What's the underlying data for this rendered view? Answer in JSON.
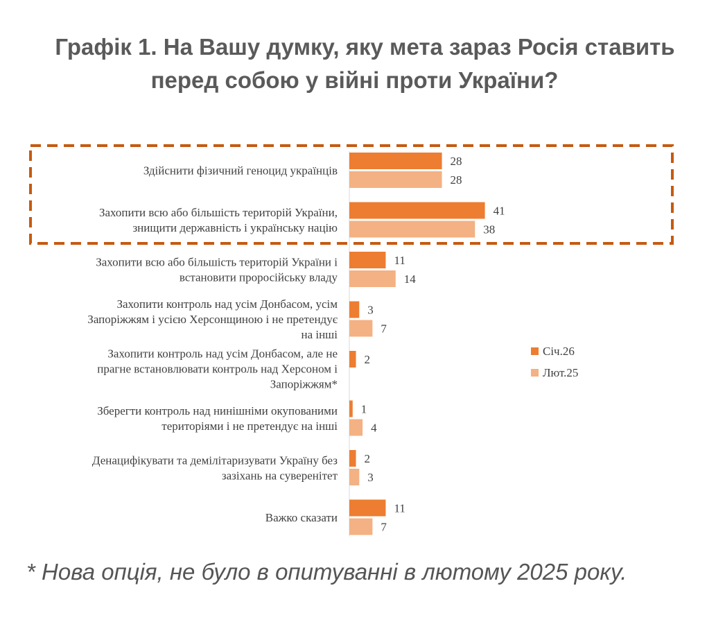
{
  "chart_data": {
    "type": "bar",
    "orientation": "horizontal",
    "title": [
      "Графік 1. На Вашу думку, яку мета зараз Росія ставить",
      "перед собою у війні проти України?"
    ],
    "categories": [
      [
        "Здійснити фізичний геноцид українців"
      ],
      [
        "Захопити всю або більшість територій України,",
        "знищити державність і українську націю"
      ],
      [
        "Захопити всю або більшість територій України і",
        "встановити проросійську владу"
      ],
      [
        "Захопити контроль над усім Донбасом, усім",
        "Запоріжжям і усією Херсонщиною і не претендує",
        "на інші"
      ],
      [
        "Захопити контроль над усім Донбасом, але не",
        "прагне встановлювати контроль над Херсоном і",
        "Запоріжжям*"
      ],
      [
        "Зберегти контроль над нинішніми окупованими",
        "територіями і не претендує на інші"
      ],
      [
        "Денацифікувати та демілітаризувати Україну без",
        "зазіхань на суверенітет"
      ],
      [
        "Важко сказати"
      ]
    ],
    "series": [
      {
        "name": "Січ.26",
        "color": "#ed7d31",
        "values": [
          28,
          41,
          11,
          3,
          2,
          1,
          2,
          11
        ]
      },
      {
        "name": "Лют.25",
        "color": "#f4b183",
        "values": [
          28,
          38,
          14,
          7,
          null,
          4,
          3,
          7
        ]
      }
    ],
    "legend_position": "right",
    "highlight_box_categories": [
      0,
      1
    ],
    "highlight_color": "#c55a11",
    "xlim": [
      0,
      45
    ]
  },
  "footnote": "* Нова опція, не було в опитуванні в лютому 2025 року."
}
